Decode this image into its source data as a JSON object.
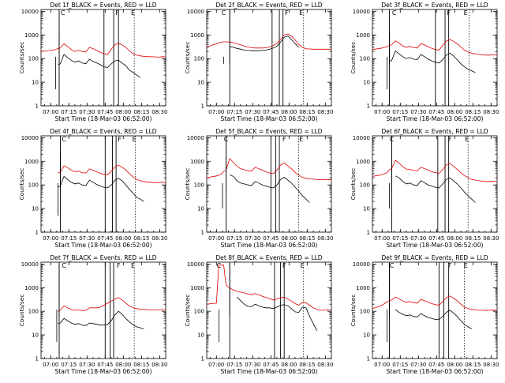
{
  "figure": {
    "xlabel": "Start Time (18-Mar-03 06:52:00)",
    "ylabel": "Counts/sec"
  },
  "chart_data": {
    "type": "line",
    "x_tick_labels": [
      "07:00",
      "07:15",
      "07:30",
      "07:45",
      "08:00",
      "08:15",
      "08:30"
    ],
    "y_tick_labels": [
      "1",
      "10",
      "100",
      "1000",
      "10000"
    ],
    "yscale": "log",
    "ylim": [
      1,
      12000
    ],
    "x_unit": "minutes since 06:52",
    "xlim": [
      0,
      103
    ],
    "x_ticks": [
      8,
      23,
      38,
      53,
      68,
      83,
      98
    ],
    "series_colors": {
      "Events": "#000000",
      "LLD": "#e00000"
    },
    "event_marker_glyphs": [
      "C",
      "F",
      "E"
    ],
    "time": [
      0,
      4,
      8,
      10,
      12,
      14,
      16,
      19,
      22,
      25,
      28,
      31,
      34,
      37,
      40,
      43,
      46,
      49,
      52,
      55,
      58,
      61,
      64,
      67,
      70,
      73,
      76,
      79,
      82,
      85,
      88,
      91,
      94,
      97,
      100,
      103
    ],
    "panels": [
      {
        "title": "Det 1f_BLACK = Events, RED = LLD",
        "series": [
          {
            "name": "Events",
            "values": [
              null,
              null,
              null,
              null,
              null,
              55,
              60,
              150,
              110,
              85,
              70,
              80,
              65,
              60,
              95,
              75,
              65,
              55,
              45,
              42,
              60,
              80,
              85,
              65,
              50,
              32,
              26,
              20,
              16,
              null,
              null,
              null,
              null,
              null,
              null,
              null
            ]
          },
          {
            "name": "LLD",
            "values": [
              200,
              210,
              220,
              230,
              240,
              270,
              280,
              420,
              330,
              240,
              200,
              230,
              200,
              190,
              300,
              260,
              220,
              180,
              160,
              150,
              250,
              380,
              450,
              380,
              300,
              210,
              160,
              140,
              130,
              125,
              120,
              120,
              118,
              115,
              120,
              118
            ]
          }
        ],
        "drop": {
          "t": 12,
          "v": 5
        },
        "spike": {
          "t": 15,
          "v": 1100
        },
        "vlines": [
          15,
          52,
          60,
          64
        ],
        "dotted": [
          77
        ],
        "glyph_t": [
          18,
          63,
          76
        ]
      },
      {
        "title": "Det 2f_BLACK = Events, RED = LLD",
        "series": [
          {
            "name": "Events",
            "values": [
              null,
              null,
              null,
              null,
              null,
              null,
              null,
              320,
              300,
              270,
              250,
              230,
              220,
              215,
              215,
              215,
              220,
              230,
              250,
              280,
              340,
              500,
              800,
              900,
              650,
              430,
              300,
              null,
              null,
              null,
              null,
              null,
              null,
              null,
              null,
              null
            ]
          },
          {
            "name": "LLD",
            "values": [
              300,
              360,
              420,
              470,
              500,
              510,
              510,
              500,
              470,
              420,
              380,
              340,
              310,
              290,
              280,
              280,
              280,
              290,
              310,
              360,
              450,
              650,
              1000,
              1100,
              900,
              620,
              400,
              300,
              260,
              255,
              250,
              250,
              250,
              250,
              250,
              250
            ]
          }
        ],
        "drop": {
          "t": 14,
          "v": 60
        },
        "spike": {
          "t": 19,
          "v": 12000
        },
        "vlines": [
          19,
          54,
          60,
          63
        ],
        "dotted": [
          80
        ],
        "glyph_t": [
          14,
          66,
          78
        ]
      },
      {
        "title": "Det 3f_BLACK = Events, RED = LLD",
        "series": [
          {
            "name": "Events",
            "values": [
              null,
              null,
              null,
              null,
              null,
              75,
              85,
              210,
              160,
              120,
              100,
              110,
              95,
              90,
              150,
              120,
              95,
              80,
              70,
              65,
              90,
              140,
              170,
              130,
              90,
              60,
              45,
              35,
              30,
              26,
              null,
              null,
              null,
              null,
              null,
              null
            ]
          },
          {
            "name": "LLD",
            "values": [
              240,
              260,
              280,
              300,
              320,
              360,
              380,
              560,
              460,
              340,
              300,
              330,
              290,
              280,
              430,
              380,
              320,
              270,
              240,
              230,
              360,
              550,
              650,
              540,
              420,
              310,
              230,
              190,
              170,
              160,
              150,
              145,
              140,
              140,
              145,
              140
            ]
          }
        ],
        "drop": {
          "t": 12,
          "v": 5
        },
        "spike": {
          "t": 14,
          "v": 1400
        },
        "vlines": [
          14,
          52,
          60,
          63
        ],
        "dotted": [
          80
        ],
        "glyph_t": [
          18,
          63,
          77
        ]
      },
      {
        "title": "Det 4f_BLACK = Events, RED = LLD",
        "series": [
          {
            "name": "Events",
            "values": [
              null,
              null,
              null,
              null,
              null,
              80,
              90,
              230,
              170,
              130,
              110,
              120,
              100,
              95,
              160,
              130,
              105,
              90,
              80,
              75,
              100,
              160,
              190,
              150,
              100,
              65,
              45,
              30,
              25,
              20,
              null,
              null,
              null,
              null,
              null,
              null
            ]
          },
          {
            "name": "LLD",
            "values": [
              null,
              null,
              null,
              null,
              null,
              320,
              350,
              650,
              540,
              420,
              360,
              380,
              330,
              320,
              480,
              420,
              360,
              310,
              280,
              270,
              380,
              580,
              680,
              560,
              430,
              300,
              220,
              170,
              150,
              140,
              130,
              130,
              125,
              125,
              130,
              125
            ]
          }
        ],
        "drop": {
          "t": 14,
          "v": 5
        },
        "spike": {
          "t": 16,
          "v": 3000
        },
        "vlines": [
          16,
          53,
          59,
          62
        ],
        "dotted": [
          78
        ],
        "glyph_t": [
          19,
          65,
          77
        ]
      },
      {
        "title": "Det 5f_BLACK = Events, RED = LLD",
        "series": [
          {
            "name": "Events",
            "values": [
              null,
              null,
              null,
              null,
              null,
              null,
              null,
              270,
              230,
              150,
              120,
              110,
              100,
              95,
              140,
              120,
              100,
              90,
              80,
              75,
              100,
              170,
              210,
              160,
              120,
              80,
              55,
              35,
              25,
              18,
              null,
              null,
              null,
              null,
              null,
              null
            ]
          },
          {
            "name": "LLD",
            "values": [
              200,
              220,
              240,
              260,
              280,
              380,
              420,
              1300,
              900,
              620,
              480,
              440,
              400,
              380,
              560,
              480,
              420,
              360,
              320,
              300,
              420,
              700,
              850,
              640,
              480,
              340,
              260,
              210,
              190,
              180,
              175,
              170,
              170,
              165,
              170,
              165
            ]
          }
        ],
        "drop": {
          "t": 13,
          "v": 10
        },
        "spike": {
          "t": 16,
          "v": 12000
        },
        "vlines": [
          16,
          53,
          57,
          60
        ],
        "dotted": [
          76
        ],
        "glyph_t": [
          16,
          64,
          78
        ]
      },
      {
        "title": "Det 6f_BLACK = Events, RED = LLD",
        "series": [
          {
            "name": "Events",
            "values": [
              null,
              null,
              null,
              null,
              null,
              null,
              null,
              240,
              200,
              140,
              110,
              120,
              100,
              95,
              150,
              125,
              100,
              90,
              80,
              75,
              110,
              170,
              200,
              150,
              110,
              75,
              50,
              35,
              25,
              18,
              null,
              null,
              null,
              null,
              null,
              null
            ]
          },
          {
            "name": "LLD",
            "values": [
              230,
              250,
              270,
              300,
              330,
              440,
              500,
              1100,
              850,
              600,
              470,
              460,
              410,
              390,
              560,
              490,
              420,
              360,
              330,
              310,
              440,
              700,
              820,
              620,
              460,
              330,
              250,
              200,
              170,
              160,
              150,
              145,
              140,
              140,
              145,
              140
            ]
          }
        ],
        "drop": {
          "t": 14,
          "v": 10
        },
        "spike": {
          "t": 16,
          "v": 12000
        },
        "vlines": [
          16,
          54,
          60,
          63
        ],
        "dotted": [
          79
        ],
        "glyph_t": [
          16,
          64,
          78
        ]
      },
      {
        "title": "Det 7f_BLACK = Events, RED = LLD",
        "series": [
          {
            "name": "Events",
            "values": [
              null,
              null,
              null,
              null,
              null,
              30,
              32,
              50,
              40,
              32,
              28,
              30,
              26,
              25,
              32,
              30,
              28,
              26,
              26,
              28,
              40,
              70,
              100,
              75,
              50,
              35,
              27,
              22,
              20,
              18,
              null,
              null,
              null,
              null,
              null,
              null
            ]
          },
          {
            "name": "LLD",
            "values": [
              null,
              null,
              null,
              null,
              null,
              100,
              110,
              170,
              140,
              120,
              110,
              115,
              105,
              110,
              140,
              140,
              140,
              150,
              180,
              220,
              270,
              330,
              380,
              300,
              220,
              170,
              140,
              130,
              120,
              120,
              118,
              115,
              115,
              115,
              118,
              115
            ]
          }
        ],
        "drop": {
          "t": 13,
          "v": 5
        },
        "spike": {
          "t": 15,
          "v": 12000
        },
        "vlines": [
          15,
          53,
          57,
          60
        ],
        "dotted": [
          77
        ],
        "glyph_t": [
          19,
          64,
          76
        ]
      },
      {
        "title": "Det 8f_BLACK = Events, RED = LLD",
        "series": [
          {
            "name": "Events",
            "values": [
              null,
              null,
              null,
              null,
              null,
              null,
              null,
              null,
              null,
              400,
              280,
              200,
              160,
              160,
              200,
              170,
              150,
              140,
              140,
              130,
              150,
              180,
              190,
              170,
              130,
              95,
              90,
              150,
              140,
              60,
              30,
              15,
              null,
              null,
              null,
              null
            ]
          },
          {
            "name": "LLD",
            "values": [
              200,
              210,
              220,
              9000,
              9000,
              9000,
              1300,
              950,
              800,
              700,
              650,
              600,
              540,
              500,
              560,
              500,
              430,
              380,
              340,
              300,
              330,
              380,
              390,
              330,
              270,
              210,
              180,
              240,
              230,
              180,
              140,
              120,
              110,
              110,
              115,
              110
            ]
          }
        ],
        "drop": {
          "t": 10,
          "v": 5
        },
        "spike": {
          "t": 19,
          "v": 12000
        },
        "vlines": [
          19,
          56,
          61,
          64
        ],
        "dotted": [
          80
        ],
        "glyph_t": [
          10,
          64,
          79
        ]
      },
      {
        "title": "Det 9f_BLACK = Events, RED = LLD",
        "series": [
          {
            "name": "Events",
            "values": [
              null,
              null,
              null,
              null,
              null,
              null,
              null,
              120,
              90,
              75,
              65,
              70,
              60,
              58,
              80,
              65,
              55,
              50,
              45,
              45,
              60,
              90,
              110,
              85,
              60,
              40,
              28,
              22,
              18,
              null,
              null,
              null,
              null,
              null,
              null,
              null
            ]
          },
          {
            "name": "LLD",
            "values": [
              130,
              150,
              180,
              210,
              250,
              280,
              300,
              400,
              340,
              270,
              240,
              260,
              230,
              220,
              320,
              280,
              240,
              210,
              190,
              180,
              250,
              380,
              440,
              360,
              280,
              200,
              150,
              130,
              120,
              115,
              110,
              110,
              108,
              110,
              112,
              110
            ]
          }
        ],
        "drop": {
          "t": 12,
          "v": 5
        },
        "spike": {
          "t": 14,
          "v": 12000
        },
        "vlines": [
          14,
          55,
          59,
          63
        ],
        "dotted": [
          76
        ],
        "glyph_t": [
          16,
          64,
          77
        ]
      }
    ]
  }
}
